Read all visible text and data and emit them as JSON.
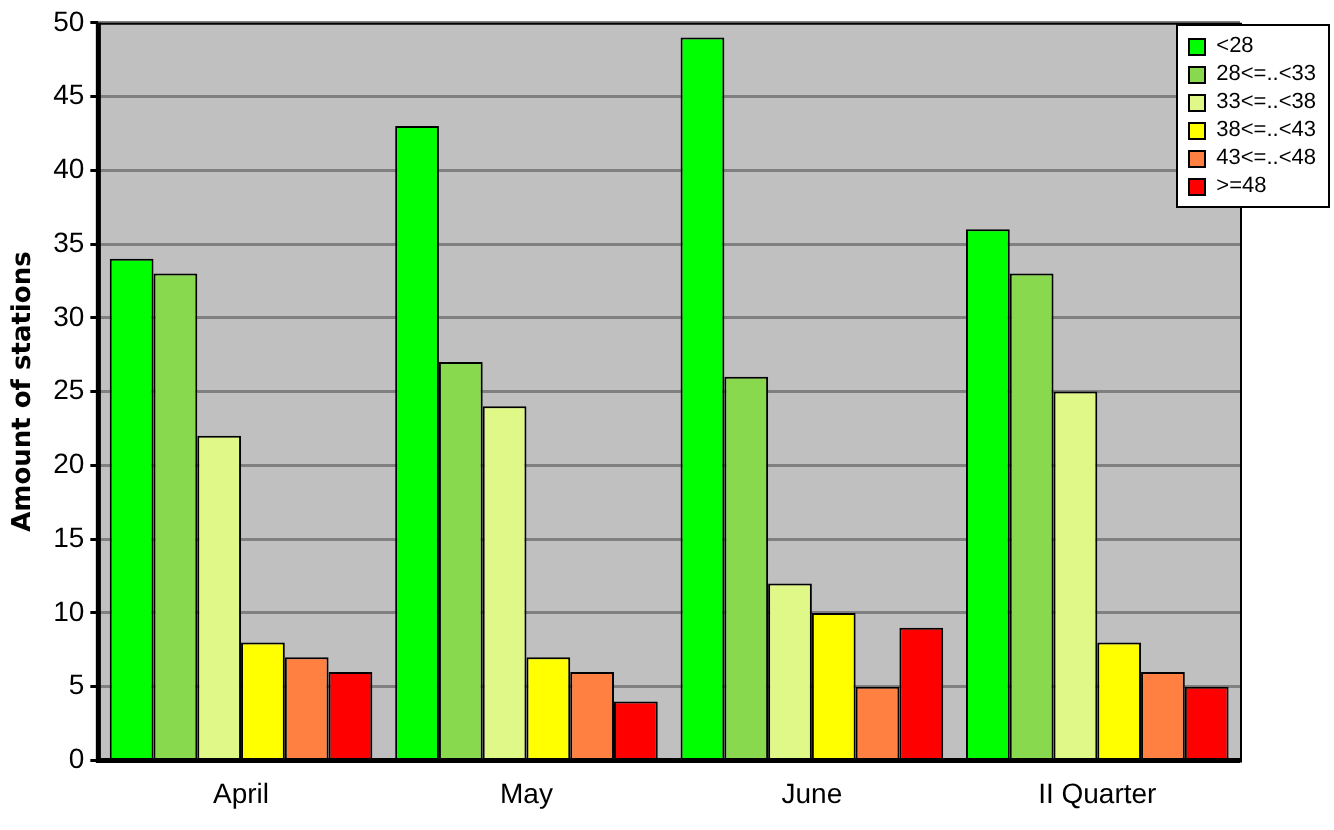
{
  "chart_data": {
    "type": "bar",
    "ylabel": "Amount of stations",
    "categories": [
      "April",
      "May",
      "June",
      "II Quarter"
    ],
    "series": [
      {
        "name": "<28",
        "color": "#00ff00",
        "values": [
          34,
          43,
          49,
          36
        ]
      },
      {
        "name": "28<=..<33",
        "color": "#88d94d",
        "values": [
          33,
          27,
          26,
          33
        ]
      },
      {
        "name": "33<=..<38",
        "color": "#e0f888",
        "values": [
          22,
          24,
          12,
          25
        ]
      },
      {
        "name": "38<=..<43",
        "color": "#ffff00",
        "values": [
          8,
          7,
          10,
          8
        ]
      },
      {
        "name": "43<=..<48",
        "color": "#ff8040",
        "values": [
          7,
          6,
          5,
          6
        ]
      },
      {
        "name": ">=48",
        "color": "#ff0000",
        "values": [
          6,
          4,
          9,
          5
        ]
      }
    ],
    "ylim": [
      0,
      50
    ],
    "yticks": [
      0,
      5,
      10,
      15,
      20,
      25,
      30,
      35,
      40,
      45,
      50
    ],
    "grid": "y",
    "legend": "top right"
  }
}
